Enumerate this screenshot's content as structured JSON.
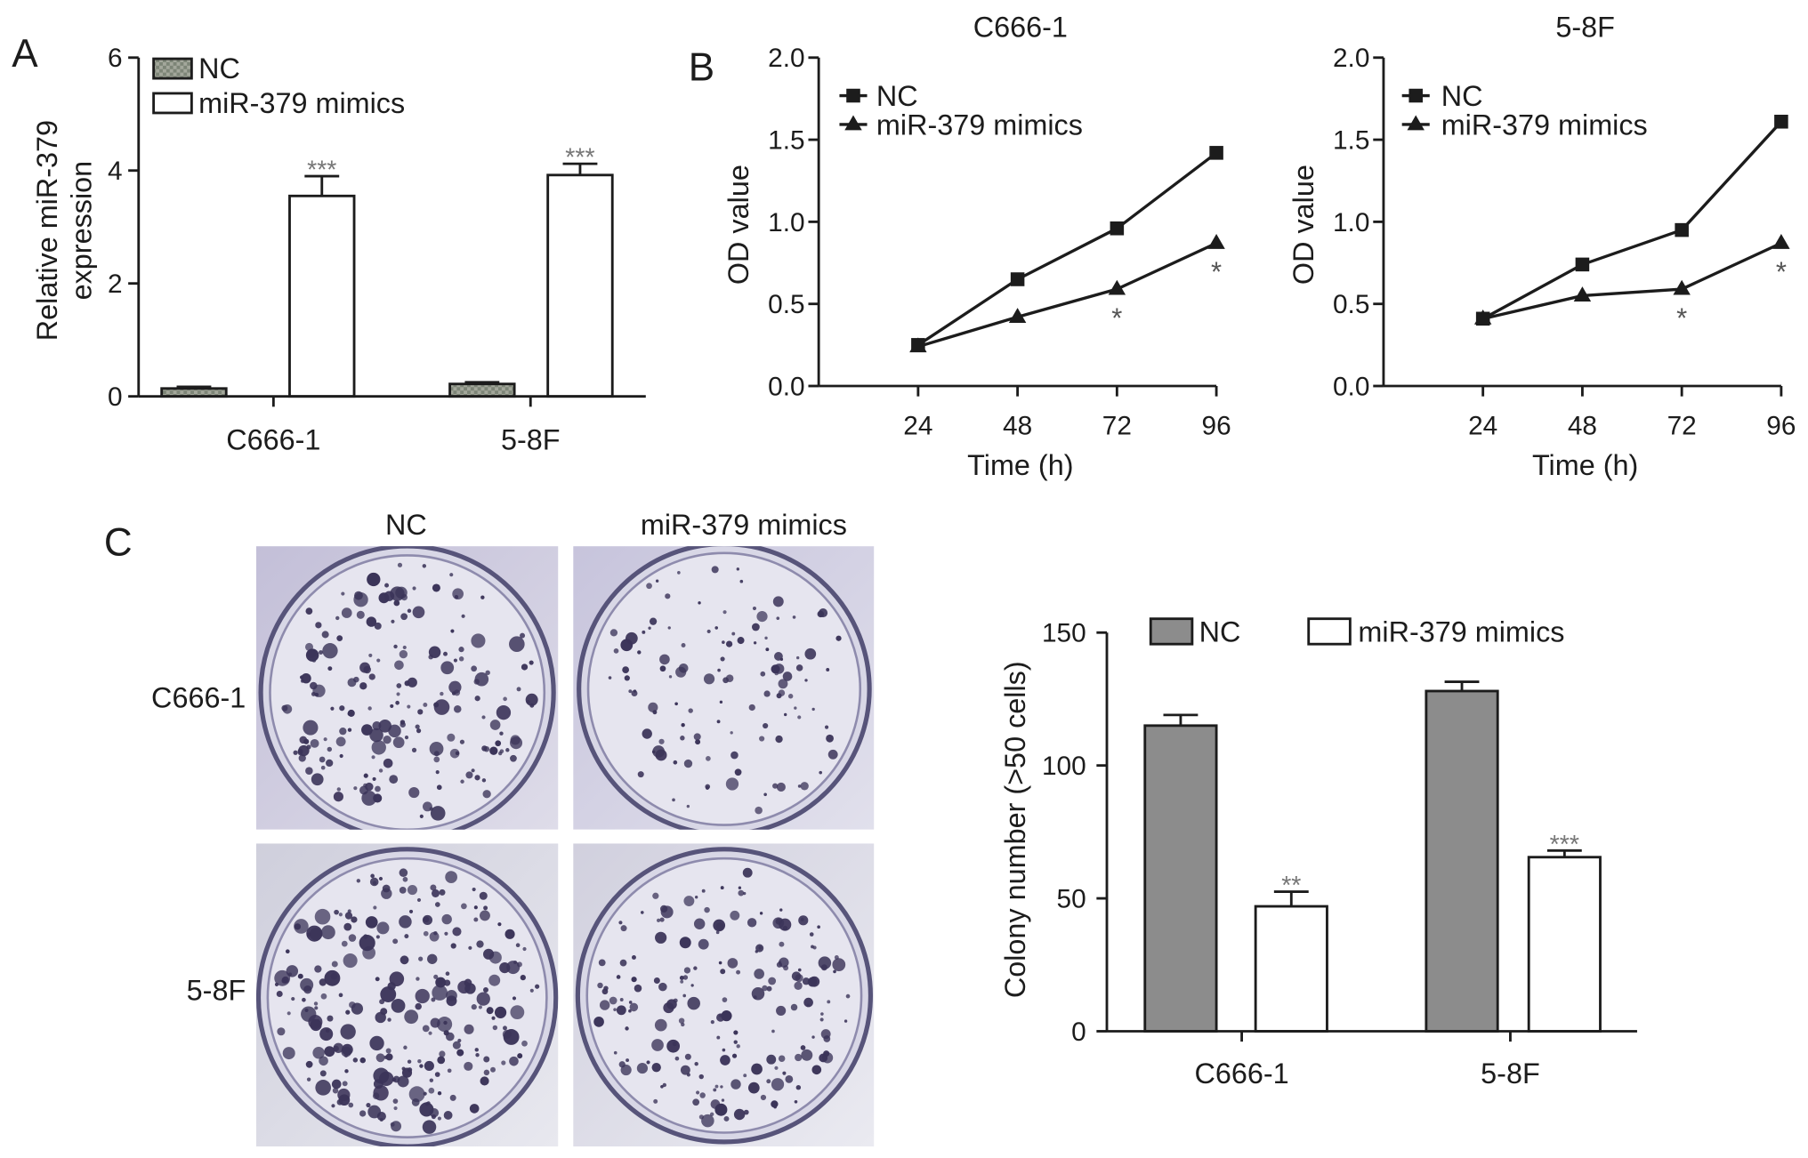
{
  "panel_labels": [
    "A",
    "B",
    "C"
  ],
  "chart_data": [
    {
      "type": "bar",
      "categories": [
        "C666-1",
        "5-8F"
      ],
      "ylabel": [
        "Relative miR-379",
        "expression"
      ],
      "ylim": [
        0,
        6
      ],
      "yticks": [
        "0",
        "2",
        "4",
        "6"
      ],
      "grid": false,
      "legend": "top-left",
      "series": [
        {
          "name": "NC",
          "values": [
            0.14,
            0.22
          ],
          "errors": [
            0.03,
            0.03
          ],
          "color": "#8f958a",
          "annotations": [
            "",
            ""
          ]
        },
        {
          "name": "miR-379 mimics",
          "values": [
            3.55,
            3.92
          ],
          "errors": [
            0.35,
            0.2
          ],
          "color": "#ffffff",
          "annotations": [
            "***",
            "***"
          ]
        }
      ]
    },
    {
      "type": "line",
      "title": "C666-1",
      "x": [
        24,
        48,
        72,
        96
      ],
      "xlim": [
        0,
        96
      ],
      "xticks": [
        "24",
        "48",
        "72",
        "96"
      ],
      "xlabel": "Time (h)",
      "ylabel": "OD value",
      "ylim": [
        0,
        2
      ],
      "yticks": [
        "0.0",
        "0.5",
        "1.0",
        "1.5",
        "2.0"
      ],
      "grid": false,
      "legend": "top-left",
      "series": [
        {
          "name": "NC",
          "marker": "square",
          "color": "#1c1c1c",
          "values": [
            0.25,
            0.65,
            0.96,
            1.42
          ],
          "annotations": [
            "",
            "",
            "",
            ""
          ]
        },
        {
          "name": "miR-379 mimics",
          "marker": "triangle",
          "color": "#1c1c1c",
          "values": [
            0.24,
            0.42,
            0.59,
            0.87
          ],
          "annotations": [
            "",
            "",
            "*",
            "*"
          ]
        }
      ]
    },
    {
      "type": "line",
      "title": "5-8F",
      "x": [
        24,
        48,
        72,
        96
      ],
      "xlim": [
        0,
        96
      ],
      "xticks": [
        "24",
        "48",
        "72",
        "96"
      ],
      "xlabel": "Time (h)",
      "ylabel": "OD value",
      "ylim": [
        0,
        2
      ],
      "yticks": [
        "0.0",
        "0.5",
        "1.0",
        "1.5",
        "2.0"
      ],
      "grid": false,
      "legend": "top-left",
      "series": [
        {
          "name": "NC",
          "marker": "square",
          "color": "#1c1c1c",
          "values": [
            0.41,
            0.74,
            0.95,
            1.61
          ],
          "annotations": [
            "",
            "",
            "",
            ""
          ]
        },
        {
          "name": "miR-379 mimics",
          "marker": "triangle",
          "color": "#1c1c1c",
          "values": [
            0.41,
            0.55,
            0.59,
            0.87
          ],
          "annotations": [
            "",
            "",
            "*",
            "*"
          ]
        }
      ]
    },
    {
      "type": "bar",
      "categories": [
        "C666-1",
        "5-8F"
      ],
      "ylabel": "Colony number (>50 cells)",
      "ylim": [
        0,
        150
      ],
      "yticks": [
        "0",
        "50",
        "100",
        "150"
      ],
      "grid": false,
      "legend": "top",
      "series": [
        {
          "name": "NC",
          "values": [
            115,
            128
          ],
          "errors": [
            4,
            3.5
          ],
          "color": "#8c8c8c",
          "annotations": [
            "",
            ""
          ]
        },
        {
          "name": "miR-379 mimics",
          "values": [
            47,
            65.5
          ],
          "errors": [
            5.5,
            2.5
          ],
          "color": "#ffffff",
          "annotations": [
            "**",
            "***"
          ]
        }
      ]
    }
  ],
  "colony_images": {
    "columns": [
      "NC",
      "miR-379 mimics"
    ],
    "rows": [
      "C666-1",
      "5-8F"
    ]
  }
}
